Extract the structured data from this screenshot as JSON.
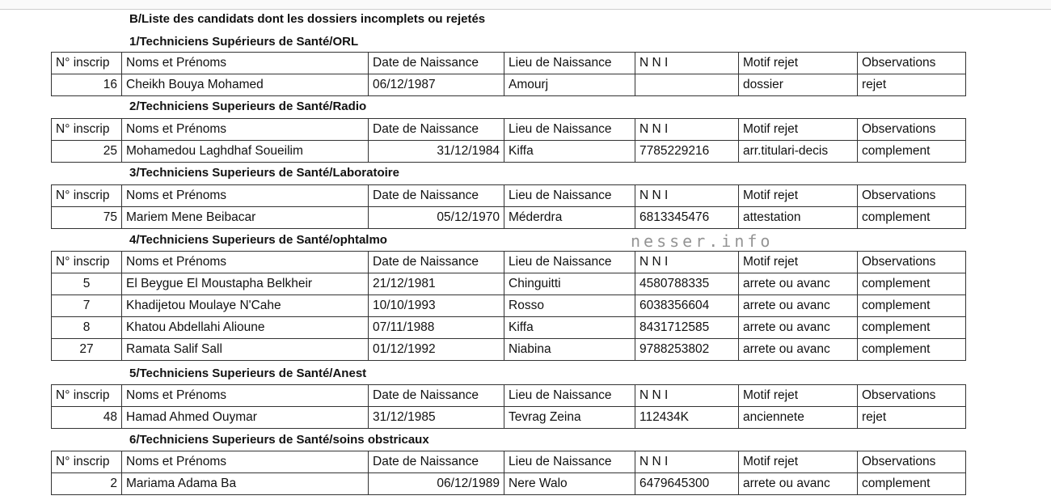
{
  "title": "B/Liste des candidats dont les dossiers incomplets ou rejetés",
  "headers": [
    "N° inscrip",
    "Noms et Prénoms",
    "Date de Naissance",
    "Lieu de Naissance",
    "N N I",
    "Motif rejet",
    "Observations"
  ],
  "watermark": "nesser.info",
  "sections": [
    {
      "heading": "1/Techniciens Supérieurs de Santé/ORL",
      "rows": [
        [
          "16",
          "Cheikh Bouya Mohamed",
          "06/12/1987",
          "Amourj",
          "",
          "dossier",
          "rejet"
        ]
      ]
    },
    {
      "heading": "2/Techniciens Superieurs de Santé/Radio",
      "rows": [
        [
          "25",
          "Mohamedou Laghdhaf Soueilim",
          "31/12/1984",
          "Kiffa",
          "7785229216",
          "arr.titulari-decis",
          "complement"
        ]
      ]
    },
    {
      "heading": "3/Techniciens Superieurs de Santé/Laboratoire",
      "rows": [
        [
          "75",
          "Mariem Mene Beibacar",
          "05/12/1970",
          "Méderdra",
          "6813345476",
          "attestation",
          "complement"
        ]
      ]
    },
    {
      "heading": "4/Techniciens Superieurs de Santé/ophtalmo",
      "rows": [
        [
          "5",
          "El Beygue El Moustapha Belkheir",
          "21/12/1981",
          "Chinguitti",
          "4580788335",
          "arrete ou avanc",
          "complement"
        ],
        [
          "7",
          "Khadijetou Moulaye N'Cahe",
          "10/10/1993",
          "Rosso",
          "6038356604",
          "arrete ou avanc",
          "complement"
        ],
        [
          "8",
          "Khatou Abdellahi Alioune",
          "07/11/1988",
          "Kiffa",
          "8431712585",
          "arrete ou avanc",
          "complement"
        ],
        [
          "27",
          "Ramata Salif Sall",
          "01/12/1992",
          "Niabina",
          "9788253802",
          "arrete ou avanc",
          "complement"
        ]
      ]
    },
    {
      "heading": "5/Techniciens Superieurs de Santé/Anest",
      "rows": [
        [
          "48",
          "Hamad  Ahmed Ouymar",
          "31/12/1985",
          "Tevrag Zeina",
          "112434K",
          "anciennete",
          "rejet"
        ]
      ]
    },
    {
      "heading": "6/Techniciens Superieurs de Santé/soins obstricaux",
      "rows": [
        [
          "2",
          "Mariama Adama Ba",
          "06/12/1989",
          "Nere Walo",
          "6479645300",
          "arrete ou avanc",
          "complement"
        ]
      ]
    }
  ]
}
